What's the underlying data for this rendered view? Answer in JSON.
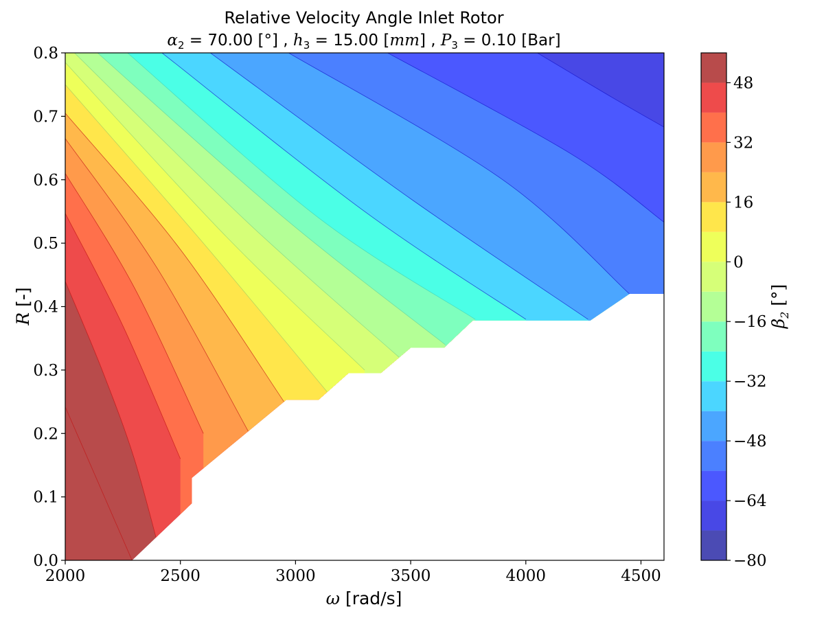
{
  "chart_data": {
    "type": "contour",
    "title": "Relative Velocity Angle Inlet Rotor",
    "subtitle": {
      "alpha_label": "α",
      "alpha_sub": "2",
      "alpha_value": " = 70.00 [°] , ",
      "h_label": "h",
      "h_sub": "3",
      "h_value": " = 15.00 [",
      "h_unit": "mm",
      "h_close": "] , ",
      "p_label": "P",
      "p_sub": "3",
      "p_value": " = 0.10 [Bar]"
    },
    "xlabel": {
      "symbol": "ω",
      "text": " [rad/s]"
    },
    "ylabel": {
      "symbol": "R",
      "text": " [-]"
    },
    "xlim": [
      2000,
      4600
    ],
    "ylim": [
      0.0,
      0.8
    ],
    "xticks": [
      2000,
      2500,
      3000,
      3500,
      4000,
      4500
    ],
    "yticks": [
      0.0,
      0.1,
      0.2,
      0.3,
      0.4,
      0.5,
      0.6,
      0.7,
      0.8
    ],
    "colorbar": {
      "label_symbol": "β",
      "label_sub": "2",
      "label_unit": " [°]",
      "levels": [
        -80,
        -72,
        -64,
        -56,
        -48,
        -40,
        -32,
        -24,
        -16,
        -8,
        0,
        8,
        16,
        24,
        32,
        40,
        48,
        56
      ],
      "ticks": [
        -80,
        -64,
        -48,
        -32,
        -16,
        0,
        16,
        32,
        48
      ],
      "tick_labels": [
        "−80",
        "−64",
        "−48",
        "−32",
        "−16",
        "0",
        "16",
        "32",
        "48"
      ],
      "colors": [
        "#4b4bb4",
        "#4848e6",
        "#4b58ff",
        "#4b80ff",
        "#4ba6ff",
        "#4bd6ff",
        "#4bffe6",
        "#7effbe",
        "#b4ff96",
        "#d6ff78",
        "#eeff5a",
        "#ffe64b",
        "#ffb84b",
        "#ff9a4b",
        "#ff704b",
        "#ee4b4b",
        "#b84b4b"
      ]
    },
    "valid_boundary": [
      [
        2290,
        0.0
      ],
      [
        2550,
        0.09
      ],
      [
        2550,
        0.13
      ],
      [
        2700,
        0.175
      ],
      [
        2850,
        0.22
      ],
      [
        2960,
        0.253
      ],
      [
        3100,
        0.253
      ],
      [
        3230,
        0.295
      ],
      [
        3370,
        0.295
      ],
      [
        3500,
        0.335
      ],
      [
        3645,
        0.335
      ],
      [
        3770,
        0.378
      ],
      [
        4280,
        0.378
      ],
      [
        4450,
        0.42
      ],
      [
        4600,
        0.42
      ]
    ],
    "contour_lines": [
      {
        "level": 56,
        "points": [
          [
            2000,
            0.242
          ],
          [
            2290,
            0.0
          ]
        ]
      },
      {
        "level": 48,
        "points": [
          [
            2000,
            0.44
          ],
          [
            2160,
            0.3
          ],
          [
            2300,
            0.16
          ],
          [
            2420,
            0.0
          ]
        ]
      },
      {
        "level": 40,
        "points": [
          [
            2000,
            0.547
          ],
          [
            2250,
            0.37
          ],
          [
            2500,
            0.16
          ]
        ]
      },
      {
        "level": 32,
        "points": [
          [
            2000,
            0.61
          ],
          [
            2300,
            0.43
          ],
          [
            2600,
            0.2
          ]
        ]
      },
      {
        "level": 24,
        "points": [
          [
            2000,
            0.665
          ],
          [
            2400,
            0.46
          ],
          [
            2800,
            0.2
          ]
        ]
      },
      {
        "level": 16,
        "points": [
          [
            2000,
            0.705
          ],
          [
            2500,
            0.49
          ],
          [
            2950,
            0.25
          ]
        ]
      },
      {
        "level": 8,
        "points": [
          [
            2000,
            0.75
          ],
          [
            2600,
            0.5
          ],
          [
            3150,
            0.26
          ]
        ]
      },
      {
        "level": 0,
        "points": [
          [
            2000,
            0.785
          ],
          [
            2700,
            0.51
          ],
          [
            3300,
            0.3
          ]
        ]
      },
      {
        "level": -8,
        "points": [
          [
            2040,
            0.8
          ],
          [
            2800,
            0.53
          ],
          [
            3450,
            0.32
          ]
        ]
      },
      {
        "level": -16,
        "points": [
          [
            2140,
            0.8
          ],
          [
            2950,
            0.54
          ],
          [
            3650,
            0.34
          ]
        ]
      },
      {
        "level": -24,
        "points": [
          [
            2270,
            0.8
          ],
          [
            3100,
            0.54
          ],
          [
            3780,
            0.38
          ]
        ]
      },
      {
        "level": -32,
        "points": [
          [
            2420,
            0.8
          ],
          [
            3300,
            0.55
          ],
          [
            4000,
            0.38
          ]
        ]
      },
      {
        "level": -40,
        "points": [
          [
            2630,
            0.8
          ],
          [
            3500,
            0.57
          ],
          [
            4270,
            0.38
          ]
        ]
      },
      {
        "level": -48,
        "points": [
          [
            2970,
            0.8
          ],
          [
            3900,
            0.6
          ],
          [
            4450,
            0.42
          ]
        ]
      },
      {
        "level": -56,
        "points": [
          [
            3400,
            0.8
          ],
          [
            4200,
            0.64
          ],
          [
            4600,
            0.533
          ]
        ]
      },
      {
        "level": -64,
        "points": [
          [
            4050,
            0.8
          ],
          [
            4350,
            0.735
          ],
          [
            4600,
            0.683
          ]
        ]
      }
    ]
  }
}
